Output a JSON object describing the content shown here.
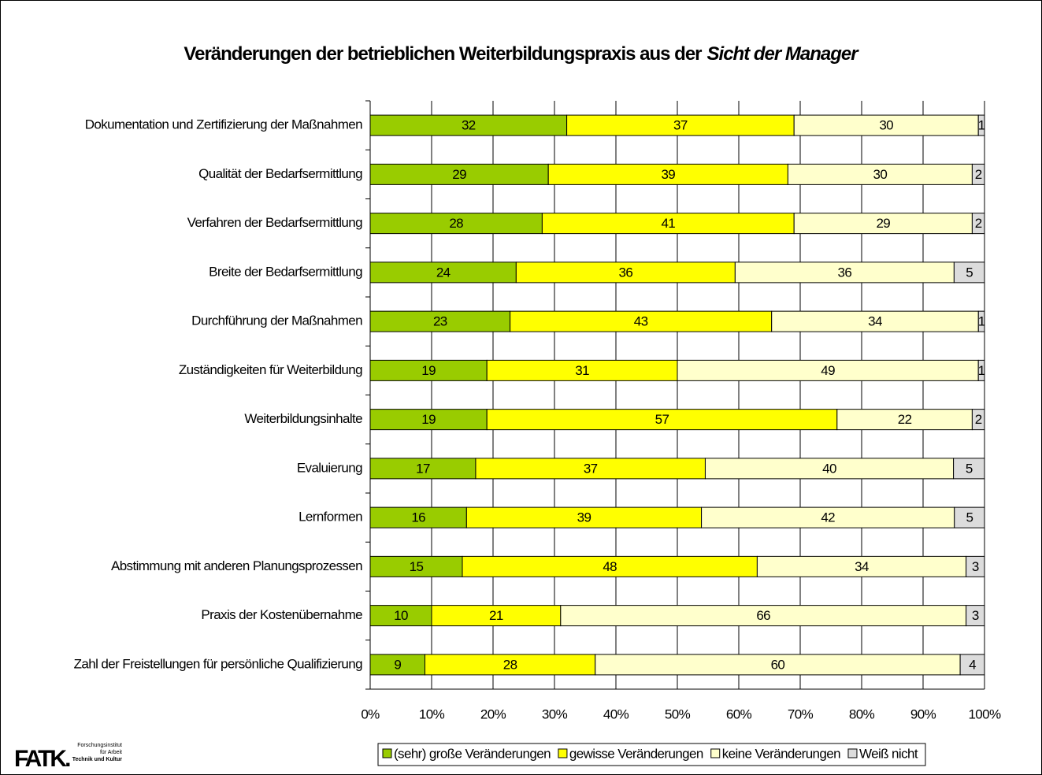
{
  "chart_data": {
    "type": "bar",
    "orientation": "horizontal",
    "stacked": "percent",
    "title": "Veränderungen der betrieblichen Weiterbildungspraxis aus der",
    "title_emphasis": "Sicht der Manager",
    "categories": [
      "Dokumentation und Zertifizierung der Maßnahmen",
      "Qualität der Bedarfsermittlung",
      "Verfahren der Bedarfsermittlung",
      "Breite der Bedarfsermittlung",
      "Durchführung der Maßnahmen",
      "Zuständigkeiten für Weiterbildung",
      "Weiterbildungsinhalte",
      "Evaluierung",
      "Lernformen",
      "Abstimmung mit anderen Planungsprozessen",
      "Praxis der Kostenübernahme",
      "Zahl der Freistellungen für persönliche Qualifizierung"
    ],
    "series": [
      {
        "name": "(sehr) große Veränderungen",
        "color": "#99cc00",
        "values": [
          32,
          29,
          28,
          24,
          23,
          19,
          19,
          17,
          16,
          15,
          10,
          9
        ]
      },
      {
        "name": "gewisse Veränderungen",
        "color": "#ffff00",
        "values": [
          37,
          39,
          41,
          36,
          43,
          31,
          57,
          37,
          39,
          48,
          21,
          28
        ]
      },
      {
        "name": "keine Veränderungen",
        "color": "#ffffcc",
        "values": [
          30,
          30,
          29,
          36,
          34,
          49,
          22,
          40,
          42,
          34,
          66,
          60
        ]
      },
      {
        "name": "Weiß nicht",
        "color": "#dcdcdc",
        "values": [
          1,
          2,
          2,
          5,
          1,
          1,
          2,
          5,
          5,
          3,
          3,
          4
        ]
      }
    ],
    "xlim": [
      0,
      100
    ],
    "xticks": [
      {
        "value": 0,
        "label": "0%"
      },
      {
        "value": 10,
        "label": "10%"
      },
      {
        "value": 20,
        "label": "20%"
      },
      {
        "value": 30,
        "label": "30%"
      },
      {
        "value": 40,
        "label": "40%"
      },
      {
        "value": 50,
        "label": "50%"
      },
      {
        "value": 60,
        "label": "60%"
      },
      {
        "value": 70,
        "label": "70%"
      },
      {
        "value": 80,
        "label": "80%"
      },
      {
        "value": 90,
        "label": "90%"
      },
      {
        "value": 100,
        "label": "100%"
      }
    ],
    "grid": true,
    "legend": "bottom"
  },
  "logo": {
    "mark": "FATK.",
    "line1": "Forschungsinstitut",
    "line2": "für Arbeit",
    "line3": "Technik und Kultur"
  }
}
